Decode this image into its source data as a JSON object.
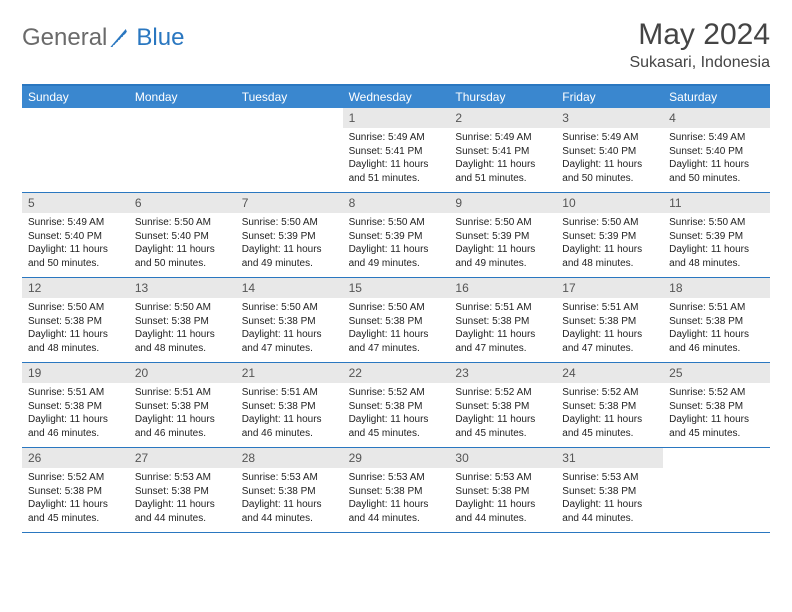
{
  "logo": {
    "part1": "General",
    "part2": "Blue"
  },
  "title": "May 2024",
  "location": "Sukasari, Indonesia",
  "colors": {
    "header_bg": "#3a87cf",
    "border": "#2a77c0",
    "daynum_bg": "#e8e8e8",
    "logo_gray": "#6a6a6a",
    "logo_blue": "#2a77c0"
  },
  "days_of_week": [
    "Sunday",
    "Monday",
    "Tuesday",
    "Wednesday",
    "Thursday",
    "Friday",
    "Saturday"
  ],
  "weeks": [
    [
      {
        "n": "",
        "lines": []
      },
      {
        "n": "",
        "lines": []
      },
      {
        "n": "",
        "lines": []
      },
      {
        "n": "1",
        "lines": [
          "Sunrise: 5:49 AM",
          "Sunset: 5:41 PM",
          "Daylight: 11 hours and 51 minutes."
        ]
      },
      {
        "n": "2",
        "lines": [
          "Sunrise: 5:49 AM",
          "Sunset: 5:41 PM",
          "Daylight: 11 hours and 51 minutes."
        ]
      },
      {
        "n": "3",
        "lines": [
          "Sunrise: 5:49 AM",
          "Sunset: 5:40 PM",
          "Daylight: 11 hours and 50 minutes."
        ]
      },
      {
        "n": "4",
        "lines": [
          "Sunrise: 5:49 AM",
          "Sunset: 5:40 PM",
          "Daylight: 11 hours and 50 minutes."
        ]
      }
    ],
    [
      {
        "n": "5",
        "lines": [
          "Sunrise: 5:49 AM",
          "Sunset: 5:40 PM",
          "Daylight: 11 hours and 50 minutes."
        ]
      },
      {
        "n": "6",
        "lines": [
          "Sunrise: 5:50 AM",
          "Sunset: 5:40 PM",
          "Daylight: 11 hours and 50 minutes."
        ]
      },
      {
        "n": "7",
        "lines": [
          "Sunrise: 5:50 AM",
          "Sunset: 5:39 PM",
          "Daylight: 11 hours and 49 minutes."
        ]
      },
      {
        "n": "8",
        "lines": [
          "Sunrise: 5:50 AM",
          "Sunset: 5:39 PM",
          "Daylight: 11 hours and 49 minutes."
        ]
      },
      {
        "n": "9",
        "lines": [
          "Sunrise: 5:50 AM",
          "Sunset: 5:39 PM",
          "Daylight: 11 hours and 49 minutes."
        ]
      },
      {
        "n": "10",
        "lines": [
          "Sunrise: 5:50 AM",
          "Sunset: 5:39 PM",
          "Daylight: 11 hours and 48 minutes."
        ]
      },
      {
        "n": "11",
        "lines": [
          "Sunrise: 5:50 AM",
          "Sunset: 5:39 PM",
          "Daylight: 11 hours and 48 minutes."
        ]
      }
    ],
    [
      {
        "n": "12",
        "lines": [
          "Sunrise: 5:50 AM",
          "Sunset: 5:38 PM",
          "Daylight: 11 hours and 48 minutes."
        ]
      },
      {
        "n": "13",
        "lines": [
          "Sunrise: 5:50 AM",
          "Sunset: 5:38 PM",
          "Daylight: 11 hours and 48 minutes."
        ]
      },
      {
        "n": "14",
        "lines": [
          "Sunrise: 5:50 AM",
          "Sunset: 5:38 PM",
          "Daylight: 11 hours and 47 minutes."
        ]
      },
      {
        "n": "15",
        "lines": [
          "Sunrise: 5:50 AM",
          "Sunset: 5:38 PM",
          "Daylight: 11 hours and 47 minutes."
        ]
      },
      {
        "n": "16",
        "lines": [
          "Sunrise: 5:51 AM",
          "Sunset: 5:38 PM",
          "Daylight: 11 hours and 47 minutes."
        ]
      },
      {
        "n": "17",
        "lines": [
          "Sunrise: 5:51 AM",
          "Sunset: 5:38 PM",
          "Daylight: 11 hours and 47 minutes."
        ]
      },
      {
        "n": "18",
        "lines": [
          "Sunrise: 5:51 AM",
          "Sunset: 5:38 PM",
          "Daylight: 11 hours and 46 minutes."
        ]
      }
    ],
    [
      {
        "n": "19",
        "lines": [
          "Sunrise: 5:51 AM",
          "Sunset: 5:38 PM",
          "Daylight: 11 hours and 46 minutes."
        ]
      },
      {
        "n": "20",
        "lines": [
          "Sunrise: 5:51 AM",
          "Sunset: 5:38 PM",
          "Daylight: 11 hours and 46 minutes."
        ]
      },
      {
        "n": "21",
        "lines": [
          "Sunrise: 5:51 AM",
          "Sunset: 5:38 PM",
          "Daylight: 11 hours and 46 minutes."
        ]
      },
      {
        "n": "22",
        "lines": [
          "Sunrise: 5:52 AM",
          "Sunset: 5:38 PM",
          "Daylight: 11 hours and 45 minutes."
        ]
      },
      {
        "n": "23",
        "lines": [
          "Sunrise: 5:52 AM",
          "Sunset: 5:38 PM",
          "Daylight: 11 hours and 45 minutes."
        ]
      },
      {
        "n": "24",
        "lines": [
          "Sunrise: 5:52 AM",
          "Sunset: 5:38 PM",
          "Daylight: 11 hours and 45 minutes."
        ]
      },
      {
        "n": "25",
        "lines": [
          "Sunrise: 5:52 AM",
          "Sunset: 5:38 PM",
          "Daylight: 11 hours and 45 minutes."
        ]
      }
    ],
    [
      {
        "n": "26",
        "lines": [
          "Sunrise: 5:52 AM",
          "Sunset: 5:38 PM",
          "Daylight: 11 hours and 45 minutes."
        ]
      },
      {
        "n": "27",
        "lines": [
          "Sunrise: 5:53 AM",
          "Sunset: 5:38 PM",
          "Daylight: 11 hours and 44 minutes."
        ]
      },
      {
        "n": "28",
        "lines": [
          "Sunrise: 5:53 AM",
          "Sunset: 5:38 PM",
          "Daylight: 11 hours and 44 minutes."
        ]
      },
      {
        "n": "29",
        "lines": [
          "Sunrise: 5:53 AM",
          "Sunset: 5:38 PM",
          "Daylight: 11 hours and 44 minutes."
        ]
      },
      {
        "n": "30",
        "lines": [
          "Sunrise: 5:53 AM",
          "Sunset: 5:38 PM",
          "Daylight: 11 hours and 44 minutes."
        ]
      },
      {
        "n": "31",
        "lines": [
          "Sunrise: 5:53 AM",
          "Sunset: 5:38 PM",
          "Daylight: 11 hours and 44 minutes."
        ]
      },
      {
        "n": "",
        "lines": []
      }
    ]
  ]
}
